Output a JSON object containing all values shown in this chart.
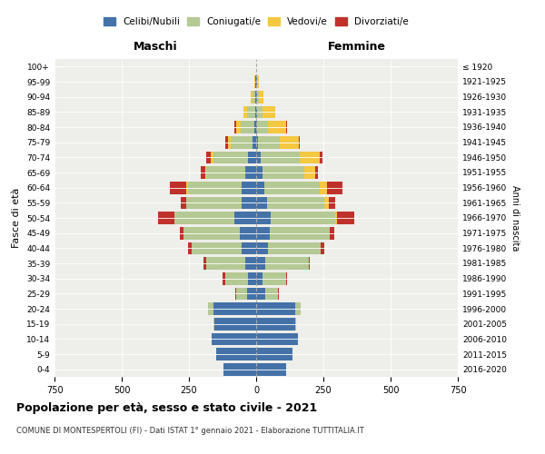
{
  "age_groups": [
    "0-4",
    "5-9",
    "10-14",
    "15-19",
    "20-24",
    "25-29",
    "30-34",
    "35-39",
    "40-44",
    "45-49",
    "50-54",
    "55-59",
    "60-64",
    "65-69",
    "70-74",
    "75-79",
    "80-84",
    "85-89",
    "90-94",
    "95-99",
    "100+"
  ],
  "birth_years": [
    "2016-2020",
    "2011-2015",
    "2006-2010",
    "2001-2005",
    "1996-2000",
    "1991-1995",
    "1986-1990",
    "1981-1985",
    "1976-1980",
    "1971-1975",
    "1966-1970",
    "1961-1965",
    "1956-1960",
    "1951-1955",
    "1946-1950",
    "1941-1945",
    "1936-1940",
    "1931-1935",
    "1926-1930",
    "1921-1925",
    "≤ 1920"
  ],
  "male": {
    "celibi": [
      120,
      150,
      165,
      155,
      160,
      35,
      30,
      40,
      55,
      60,
      80,
      55,
      55,
      40,
      30,
      15,
      8,
      5,
      3,
      2,
      0
    ],
    "coniugati": [
      0,
      0,
      2,
      5,
      20,
      40,
      85,
      145,
      185,
      210,
      225,
      205,
      200,
      145,
      130,
      80,
      50,
      30,
      10,
      3,
      0
    ],
    "vedovi": [
      0,
      0,
      0,
      0,
      0,
      0,
      0,
      0,
      0,
      0,
      0,
      0,
      5,
      5,
      10,
      10,
      18,
      12,
      8,
      3,
      0
    ],
    "divorziati": [
      0,
      0,
      0,
      0,
      0,
      3,
      10,
      10,
      15,
      15,
      60,
      20,
      60,
      15,
      15,
      10,
      5,
      0,
      0,
      0,
      0
    ]
  },
  "female": {
    "nubili": [
      110,
      135,
      155,
      145,
      145,
      35,
      25,
      35,
      45,
      50,
      55,
      40,
      30,
      25,
      18,
      8,
      5,
      5,
      3,
      2,
      0
    ],
    "coniugate": [
      0,
      0,
      2,
      5,
      20,
      45,
      85,
      160,
      195,
      225,
      240,
      215,
      205,
      155,
      145,
      80,
      40,
      20,
      8,
      3,
      0
    ],
    "vedove": [
      0,
      0,
      0,
      0,
      0,
      0,
      0,
      0,
      0,
      0,
      5,
      15,
      30,
      40,
      75,
      70,
      65,
      45,
      15,
      5,
      0
    ],
    "divorziate": [
      0,
      0,
      0,
      0,
      0,
      3,
      5,
      5,
      15,
      15,
      65,
      25,
      55,
      10,
      10,
      5,
      5,
      0,
      0,
      0,
      0
    ]
  },
  "colors": {
    "celibi": "#4472a8",
    "coniugati": "#b5c994",
    "vedovi": "#f5c842",
    "divorziati": "#c0312b"
  },
  "title": "Popolazione per età, sesso e stato civile - 2021",
  "subtitle": "COMUNE DI MONTESPERTOLI (FI) - Dati ISTAT 1° gennaio 2021 - Elaborazione TUTTITALIA.IT",
  "xlabel_left": "Maschi",
  "xlabel_right": "Femmine",
  "ylabel_left": "Fasce di età",
  "ylabel_right": "Anni di nascita",
  "xlim": 750,
  "bg_color": "#eeeeea",
  "legend_labels": [
    "Celibi/Nubili",
    "Coniugati/e",
    "Vedovi/e",
    "Divorziati/e"
  ]
}
